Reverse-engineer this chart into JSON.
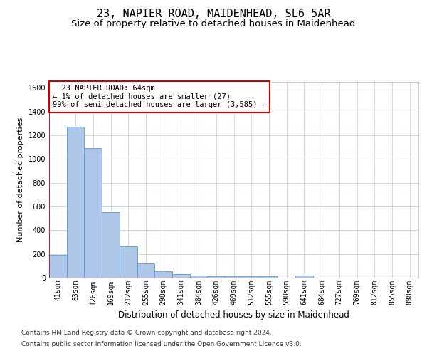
{
  "title": "23, NAPIER ROAD, MAIDENHEAD, SL6 5AR",
  "subtitle": "Size of property relative to detached houses in Maidenhead",
  "xlabel": "Distribution of detached houses by size in Maidenhead",
  "ylabel": "Number of detached properties",
  "categories": [
    "41sqm",
    "83sqm",
    "126sqm",
    "169sqm",
    "212sqm",
    "255sqm",
    "298sqm",
    "341sqm",
    "384sqm",
    "426sqm",
    "469sqm",
    "512sqm",
    "555sqm",
    "598sqm",
    "641sqm",
    "684sqm",
    "727sqm",
    "769sqm",
    "812sqm",
    "855sqm",
    "898sqm"
  ],
  "values": [
    195,
    1270,
    1095,
    555,
    265,
    120,
    55,
    30,
    20,
    10,
    10,
    10,
    10,
    0,
    20,
    0,
    0,
    0,
    0,
    0,
    0
  ],
  "bar_color": "#aec6e8",
  "bar_edge_color": "#5b9bd5",
  "background_color": "#ffffff",
  "grid_color": "#d0d8e8",
  "annotation_text": "  23 NAPIER ROAD: 64sqm\n← 1% of detached houses are smaller (27)\n99% of semi-detached houses are larger (3,585) →",
  "annotation_box_color": "#ffffff",
  "annotation_box_edge": "#cc0000",
  "ylim": [
    0,
    1650
  ],
  "yticks": [
    0,
    200,
    400,
    600,
    800,
    1000,
    1200,
    1400,
    1600
  ],
  "footer_line1": "Contains HM Land Registry data © Crown copyright and database right 2024.",
  "footer_line2": "Contains public sector information licensed under the Open Government Licence v3.0.",
  "title_fontsize": 11,
  "subtitle_fontsize": 9.5,
  "axis_label_fontsize": 8.5,
  "tick_fontsize": 7,
  "annotation_fontsize": 7.5,
  "footer_fontsize": 6.5,
  "ylabel_fontsize": 8
}
